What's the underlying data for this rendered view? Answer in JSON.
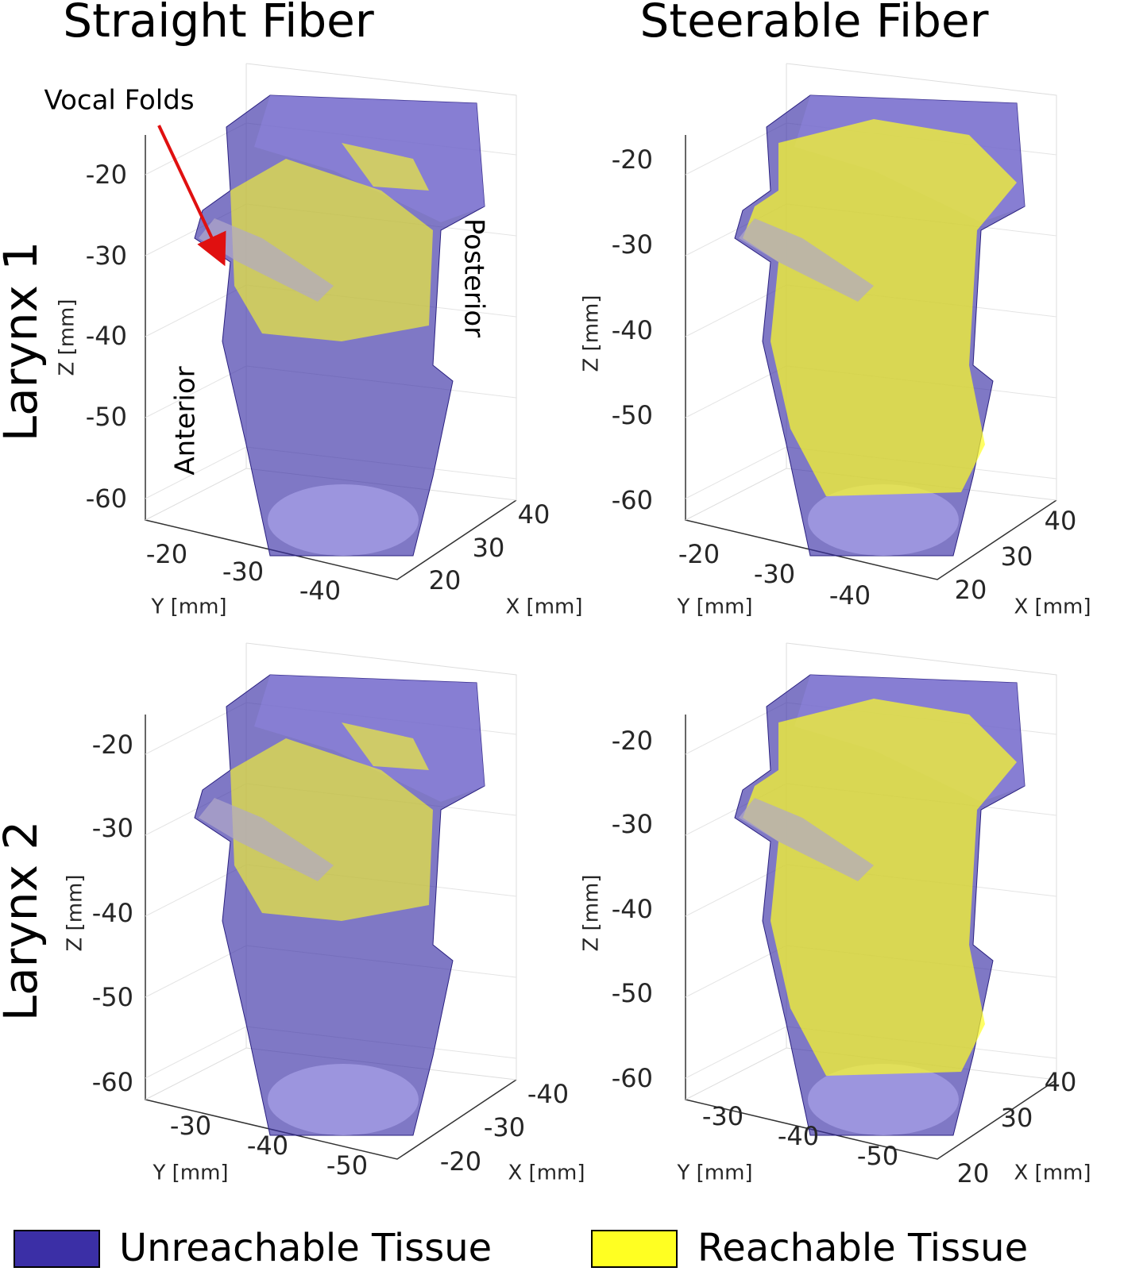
{
  "column_titles": [
    "Straight Fiber",
    "Steerable Fiber"
  ],
  "row_labels": [
    "Larynx 1",
    "Larynx 2"
  ],
  "panels": [
    {
      "z_label": "Z [mm]",
      "y_label": "Y [mm]",
      "x_label": "X [mm]",
      "zticks": [
        -20,
        -30,
        -40,
        -50,
        -60
      ],
      "yticks": [
        -20,
        -30,
        -40
      ],
      "xticks": [
        20,
        30,
        40
      ],
      "annotations": [
        "Vocal Folds",
        "Anterior",
        "Posterior"
      ]
    },
    {
      "z_label": "Z [mm]",
      "y_label": "Y [mm]",
      "x_label": "X [mm]",
      "zticks": [
        -20,
        -30,
        -40,
        -50,
        -60
      ],
      "yticks": [
        -20,
        -30,
        -40
      ],
      "xticks": [
        20,
        30,
        40
      ]
    },
    {
      "z_label": "Z [mm]",
      "y_label": "Y [mm]",
      "x_label": "X [mm]",
      "zticks": [
        -20,
        -30,
        -40,
        -50,
        -60
      ],
      "yticks": [
        -30,
        -40,
        -50
      ],
      "xticks": [
        -20,
        -30,
        -40
      ]
    },
    {
      "z_label": "Z [mm]",
      "y_label": "Y [mm]",
      "x_label": "X [mm]",
      "zticks": [
        -20,
        -30,
        -40,
        -50,
        -60
      ],
      "yticks": [
        -30,
        -40,
        -50
      ],
      "xticks": [
        20,
        30,
        40
      ]
    }
  ],
  "legend": [
    {
      "name": "Unreachable Tissue",
      "color": "#3b2fa6"
    },
    {
      "name": "Reachable Tissue",
      "color": "#ffff22"
    }
  ]
}
